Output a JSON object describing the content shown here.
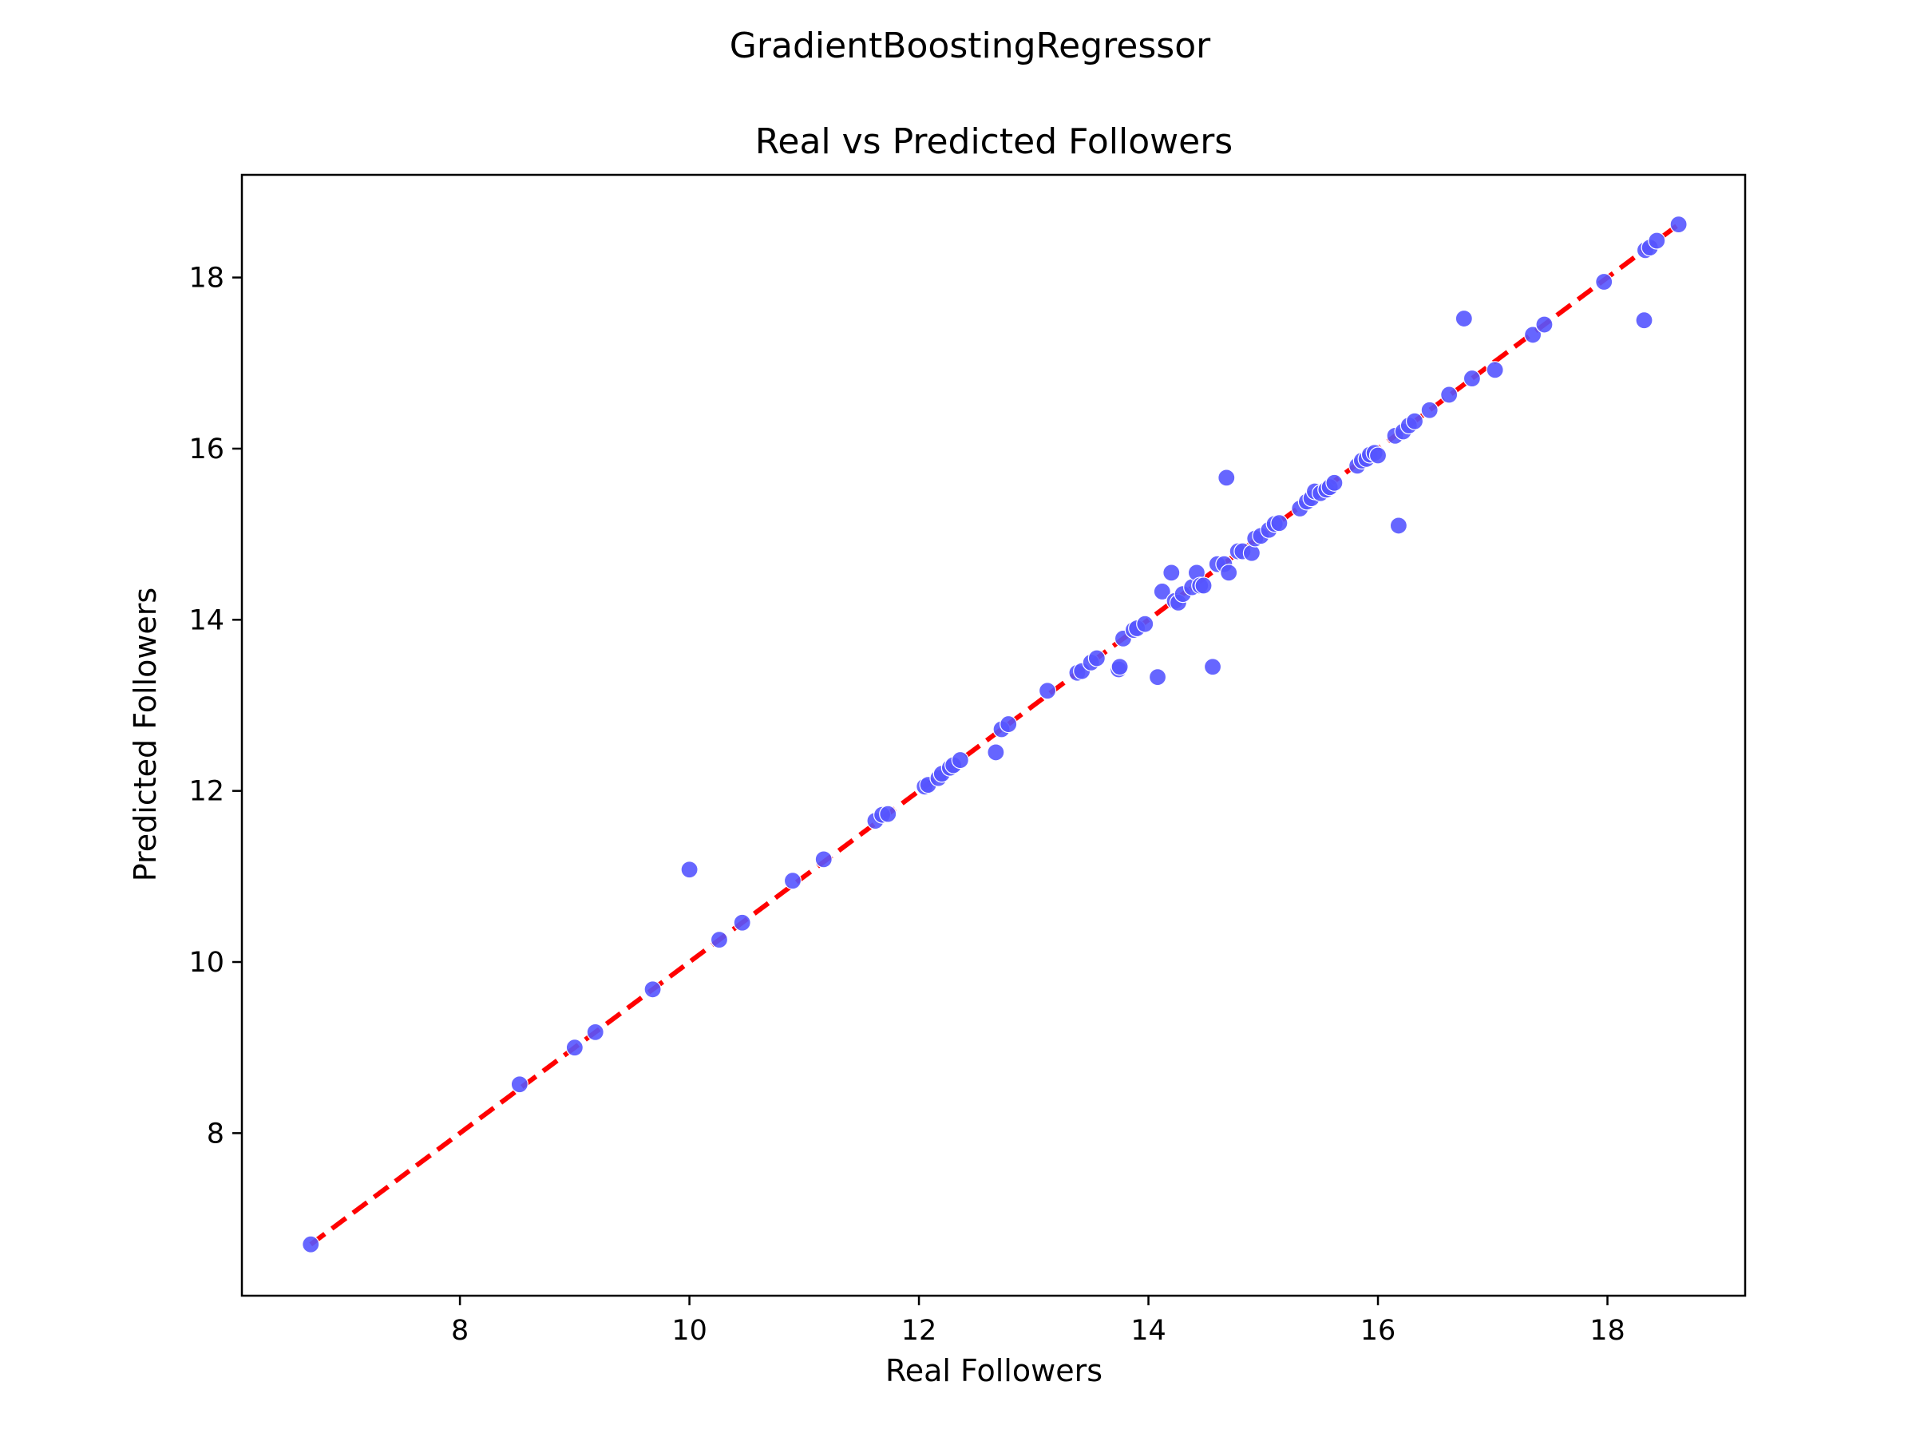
{
  "chart_data": {
    "type": "scatter",
    "suptitle": "GradientBoostingRegressor",
    "title": "Real vs Predicted Followers",
    "xlabel": "Real Followers",
    "ylabel": "Predicted Followers",
    "xlim": [
      6.1,
      19.2
    ],
    "ylim": [
      6.1,
      19.2
    ],
    "xticks": [
      8,
      10,
      12,
      14,
      16,
      18
    ],
    "yticks": [
      8,
      10,
      12,
      14,
      16,
      18
    ],
    "grid": false,
    "legend": false,
    "point_color": "#5555ff",
    "point_edge_color": "#ffffff",
    "reference_line": {
      "from": [
        6.7,
        6.7
      ],
      "to": [
        18.62,
        18.62
      ],
      "color": "#ff0000",
      "style": "dashed"
    },
    "series": [
      {
        "points": [
          [
            6.7,
            6.7
          ],
          [
            8.52,
            8.57
          ],
          [
            9.0,
            9.0
          ],
          [
            9.18,
            9.18
          ],
          [
            9.68,
            9.68
          ],
          [
            10.0,
            11.08
          ],
          [
            10.26,
            10.26
          ],
          [
            10.46,
            10.46
          ],
          [
            10.9,
            10.95
          ],
          [
            11.17,
            11.2
          ],
          [
            11.62,
            11.65
          ],
          [
            11.68,
            11.72
          ],
          [
            11.73,
            11.73
          ],
          [
            12.05,
            12.05
          ],
          [
            12.08,
            12.07
          ],
          [
            12.17,
            12.15
          ],
          [
            12.2,
            12.2
          ],
          [
            12.27,
            12.27
          ],
          [
            12.3,
            12.3
          ],
          [
            12.36,
            12.36
          ],
          [
            12.67,
            12.45
          ],
          [
            12.72,
            12.72
          ],
          [
            12.78,
            12.78
          ],
          [
            13.12,
            13.17
          ],
          [
            13.38,
            13.38
          ],
          [
            13.42,
            13.4
          ],
          [
            13.5,
            13.5
          ],
          [
            13.55,
            13.55
          ],
          [
            13.74,
            13.42
          ],
          [
            13.75,
            13.45
          ],
          [
            13.78,
            13.78
          ],
          [
            13.87,
            13.88
          ],
          [
            13.9,
            13.9
          ],
          [
            13.97,
            13.95
          ],
          [
            14.08,
            13.33
          ],
          [
            14.12,
            14.33
          ],
          [
            14.2,
            14.55
          ],
          [
            14.23,
            14.22
          ],
          [
            14.26,
            14.2
          ],
          [
            14.3,
            14.3
          ],
          [
            14.38,
            14.38
          ],
          [
            14.42,
            14.55
          ],
          [
            14.45,
            14.4
          ],
          [
            14.48,
            14.4
          ],
          [
            14.56,
            13.45
          ],
          [
            14.6,
            14.65
          ],
          [
            14.66,
            14.65
          ],
          [
            14.68,
            15.66
          ],
          [
            14.7,
            14.55
          ],
          [
            14.78,
            14.8
          ],
          [
            14.82,
            14.8
          ],
          [
            14.9,
            14.78
          ],
          [
            14.93,
            14.95
          ],
          [
            14.98,
            14.98
          ],
          [
            15.05,
            15.05
          ],
          [
            15.1,
            15.12
          ],
          [
            15.14,
            15.13
          ],
          [
            15.32,
            15.3
          ],
          [
            15.38,
            15.38
          ],
          [
            15.42,
            15.42
          ],
          [
            15.45,
            15.5
          ],
          [
            15.5,
            15.48
          ],
          [
            15.55,
            15.52
          ],
          [
            15.58,
            15.55
          ],
          [
            15.62,
            15.6
          ],
          [
            15.82,
            15.8
          ],
          [
            15.86,
            15.86
          ],
          [
            15.9,
            15.88
          ],
          [
            15.93,
            15.93
          ],
          [
            15.97,
            15.95
          ],
          [
            16.0,
            15.92
          ],
          [
            16.15,
            16.15
          ],
          [
            16.18,
            15.1
          ],
          [
            16.22,
            16.2
          ],
          [
            16.27,
            16.27
          ],
          [
            16.32,
            16.32
          ],
          [
            16.45,
            16.45
          ],
          [
            16.62,
            16.63
          ],
          [
            16.75,
            17.52
          ],
          [
            16.82,
            16.82
          ],
          [
            17.02,
            16.92
          ],
          [
            17.35,
            17.33
          ],
          [
            17.45,
            17.45
          ],
          [
            17.97,
            17.95
          ],
          [
            18.32,
            17.5
          ],
          [
            18.33,
            18.32
          ],
          [
            18.37,
            18.35
          ],
          [
            18.43,
            18.43
          ],
          [
            18.62,
            18.62
          ]
        ]
      }
    ]
  }
}
